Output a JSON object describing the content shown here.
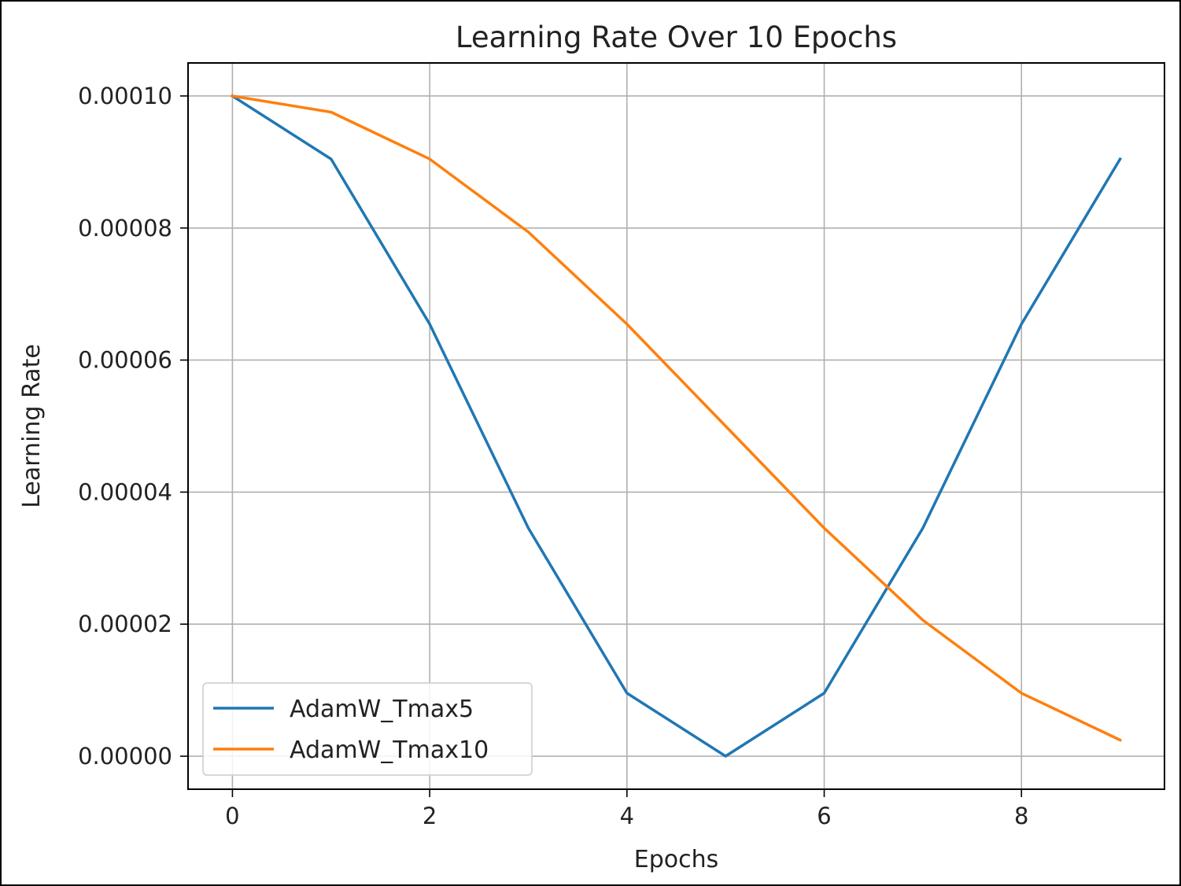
{
  "chart_data": {
    "type": "line",
    "title": "Learning Rate Over 10 Epochs",
    "xlabel": "Epochs",
    "ylabel": "Learning Rate",
    "x": [
      0,
      1,
      2,
      3,
      4,
      5,
      6,
      7,
      8,
      9
    ],
    "xlim": [
      -0.45,
      9.45
    ],
    "ylim": [
      -5e-06,
      0.000105
    ],
    "x_ticks": [
      "0",
      "2",
      "4",
      "6",
      "8"
    ],
    "x_tick_values": [
      0,
      2,
      4,
      6,
      8
    ],
    "y_ticks": [
      "0.00000",
      "0.00002",
      "0.00004",
      "0.00006",
      "0.00008",
      "0.00010"
    ],
    "y_tick_values": [
      0,
      2e-05,
      4e-05,
      6e-05,
      8e-05,
      0.0001
    ],
    "grid": true,
    "legend_position": "lower-left",
    "series": [
      {
        "name": "AdamW_Tmax5",
        "color": "#1f77b4",
        "values": [
          0.0001,
          9.045e-05,
          6.545e-05,
          3.455e-05,
          9.55e-06,
          0.0,
          9.55e-06,
          3.455e-05,
          6.545e-05,
          9.045e-05
        ]
      },
      {
        "name": "AdamW_Tmax10",
        "color": "#ff7f0e",
        "values": [
          0.0001,
          9.755e-05,
          9.045e-05,
          7.939e-05,
          6.545e-05,
          5e-05,
          3.455e-05,
          2.061e-05,
          9.55e-06,
          2.45e-06
        ]
      }
    ]
  }
}
